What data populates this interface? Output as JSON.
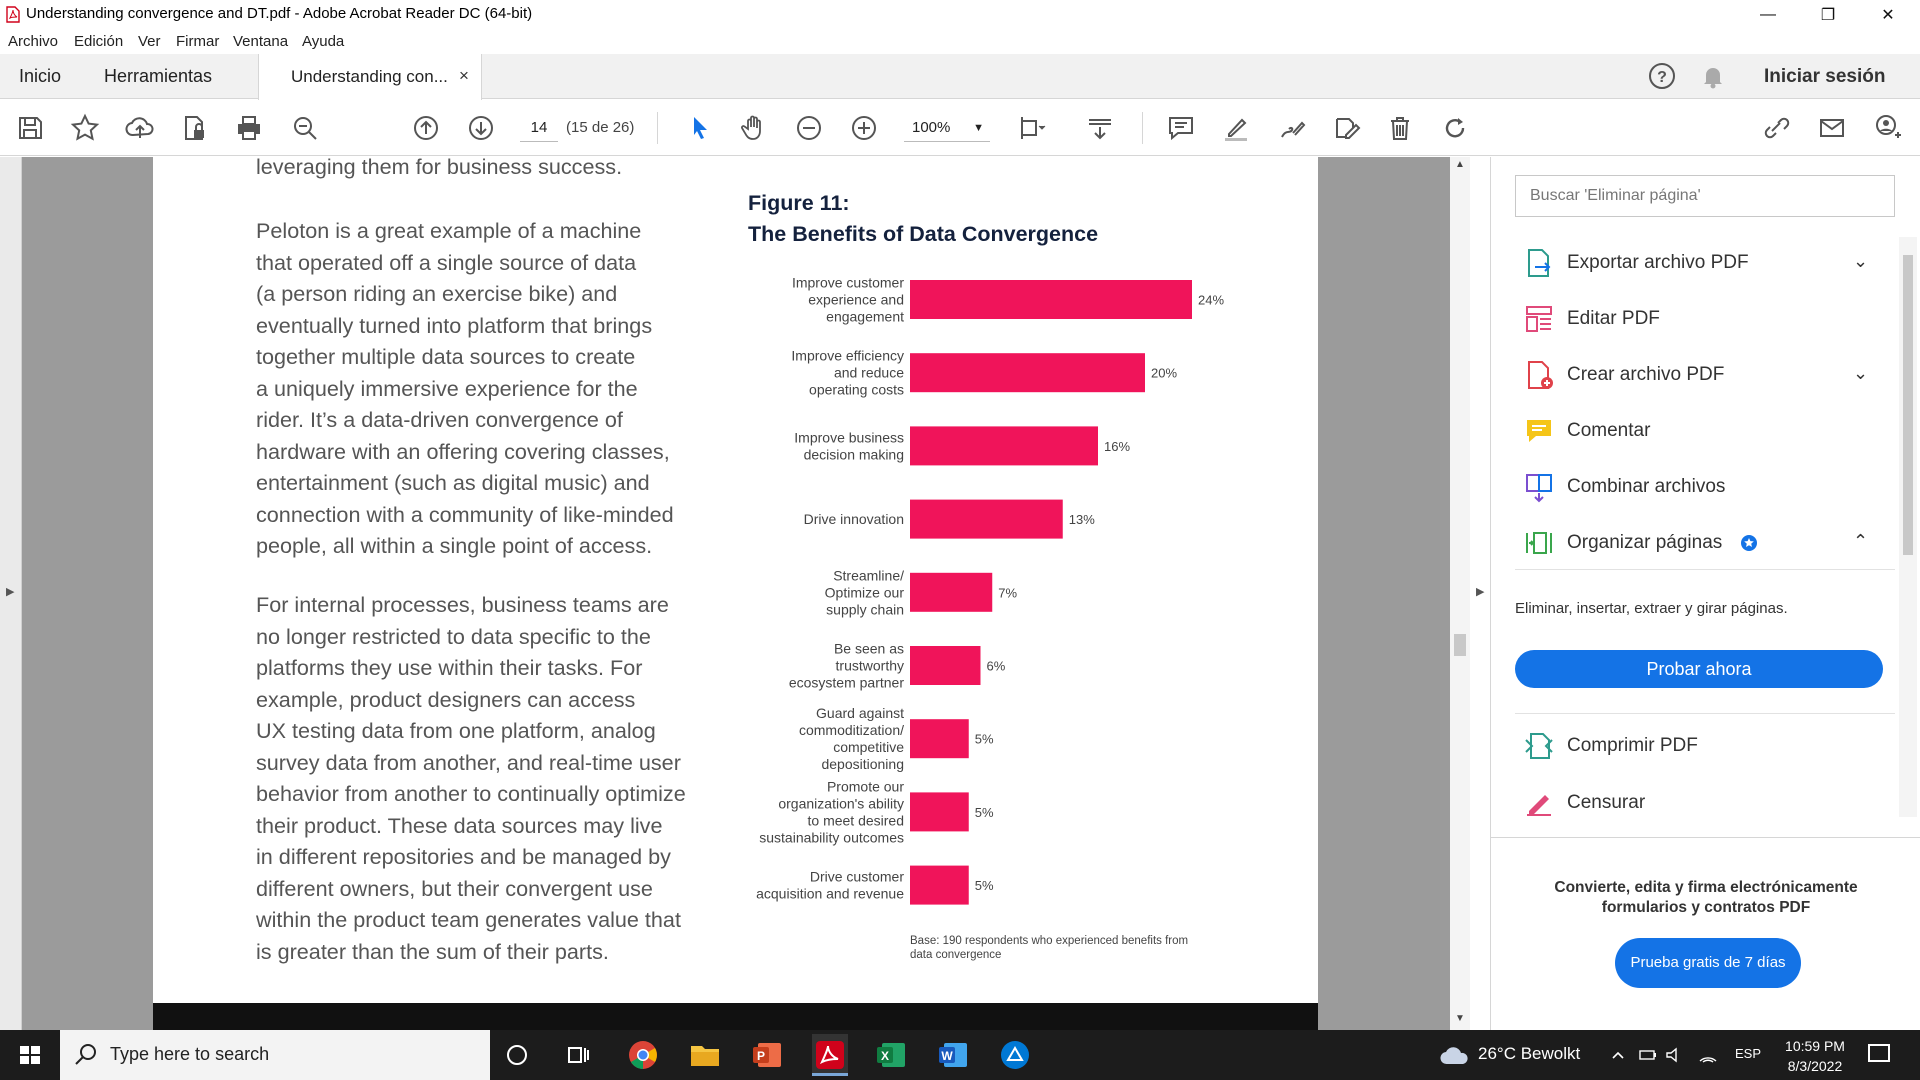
{
  "window": {
    "title": "Understanding convergence and DT.pdf - Adobe Acrobat Reader DC (64-bit)",
    "minimize": "—",
    "restore": "❐",
    "close": "✕"
  },
  "menu": [
    "Archivo",
    "Edición",
    "Ver",
    "Firmar",
    "Ventana",
    "Ayuda"
  ],
  "tabs": {
    "home": "Inicio",
    "tools": "Herramientas",
    "document": "Understanding con...",
    "close": "×",
    "signin": "Iniciar sesión"
  },
  "toolbar": {
    "page_number": "14",
    "page_count": "(15 de 26)",
    "zoom": "100%",
    "zoom_caret": "▼"
  },
  "document": {
    "para0": "leveraging them for business success.",
    "para1": [
      "Peloton is a great example of a machine",
      "that operated off a single source of data",
      "(a person riding an exercise bike) and",
      "eventually turned into platform that brings",
      "together multiple data sources to create",
      "a uniquely immersive experience for the",
      "rider. It’s a data-driven convergence of",
      "hardware with an offering covering classes,",
      "entertainment (such as digital music) and",
      "connection with a community of like-minded",
      "people, all within a single point of access."
    ],
    "para2": [
      "For internal processes, business teams are",
      "no longer restricted to data specific to the",
      "platforms they use within their tasks. For",
      "example, product designers can access",
      "UX testing data from one platform, analog",
      "survey data from another, and real-time user",
      "behavior from another to continually optimize",
      "their product. These data sources may live",
      "in different repositories and be managed by",
      "different owners, but their convergent use",
      "within the product team generates value that",
      "is greater than the sum of their parts."
    ],
    "figure_label": "Figure 11:",
    "figure_title": "The Benefits of Data Convergence",
    "note": "Base: 190 respondents who experienced benefits from data convergence"
  },
  "chart_data": {
    "type": "bar",
    "orientation": "horizontal",
    "bar_color": "#f0145a",
    "categories": [
      [
        "Improve customer",
        "experience and",
        "engagement"
      ],
      [
        "Improve efficiency",
        "and reduce",
        "operating costs"
      ],
      [
        "Improve business",
        "decision making"
      ],
      [
        "Drive innovation"
      ],
      [
        "Streamline/",
        "Optimize our",
        "supply chain"
      ],
      [
        "Be seen as",
        "trustworthy",
        "ecosystem partner"
      ],
      [
        "Guard against",
        "commoditization/",
        "competitive",
        "depositioning"
      ],
      [
        "Promote our",
        "organization's ability",
        "to meet desired",
        "sustainability outcomes"
      ],
      [
        "Drive customer",
        "acquisition and revenue"
      ]
    ],
    "values": [
      24,
      20,
      16,
      13,
      7,
      6,
      5,
      5,
      5
    ],
    "value_labels": [
      "24%",
      "20%",
      "16%",
      "13%",
      "7%",
      "6%",
      "5%",
      "5%",
      "5%"
    ],
    "unit": "%"
  },
  "panel": {
    "search_placeholder": "Buscar 'Eliminar página'",
    "tools": [
      {
        "label": "Exportar archivo PDF",
        "chev": "⌄"
      },
      {
        "label": "Editar PDF",
        "chev": ""
      },
      {
        "label": "Crear archivo PDF",
        "chev": "⌄"
      },
      {
        "label": "Comentar",
        "chev": ""
      },
      {
        "label": "Combinar archivos",
        "chev": ""
      },
      {
        "label": "Organizar páginas",
        "chev": "⌃"
      },
      {
        "label": "Comprimir PDF",
        "chev": ""
      },
      {
        "label": "Censurar",
        "chev": ""
      }
    ],
    "organize_desc": "Eliminar, insertar, extraer y girar páginas.",
    "try_now": "Probar ahora",
    "promo_text": "Convierte, edita y firma electrónicamente formularios y contratos PDF",
    "promo_button": "Prueba gratis de 7 días"
  },
  "taskbar": {
    "search_placeholder": "Type here to search",
    "weather": "26°C  Bewolkt",
    "lang": "ESP",
    "time": "10:59 PM",
    "date": "8/3/2022"
  },
  "colors": {
    "accent": "#1473e6",
    "bar": "#f0145a",
    "figure_title": "#14213d"
  }
}
